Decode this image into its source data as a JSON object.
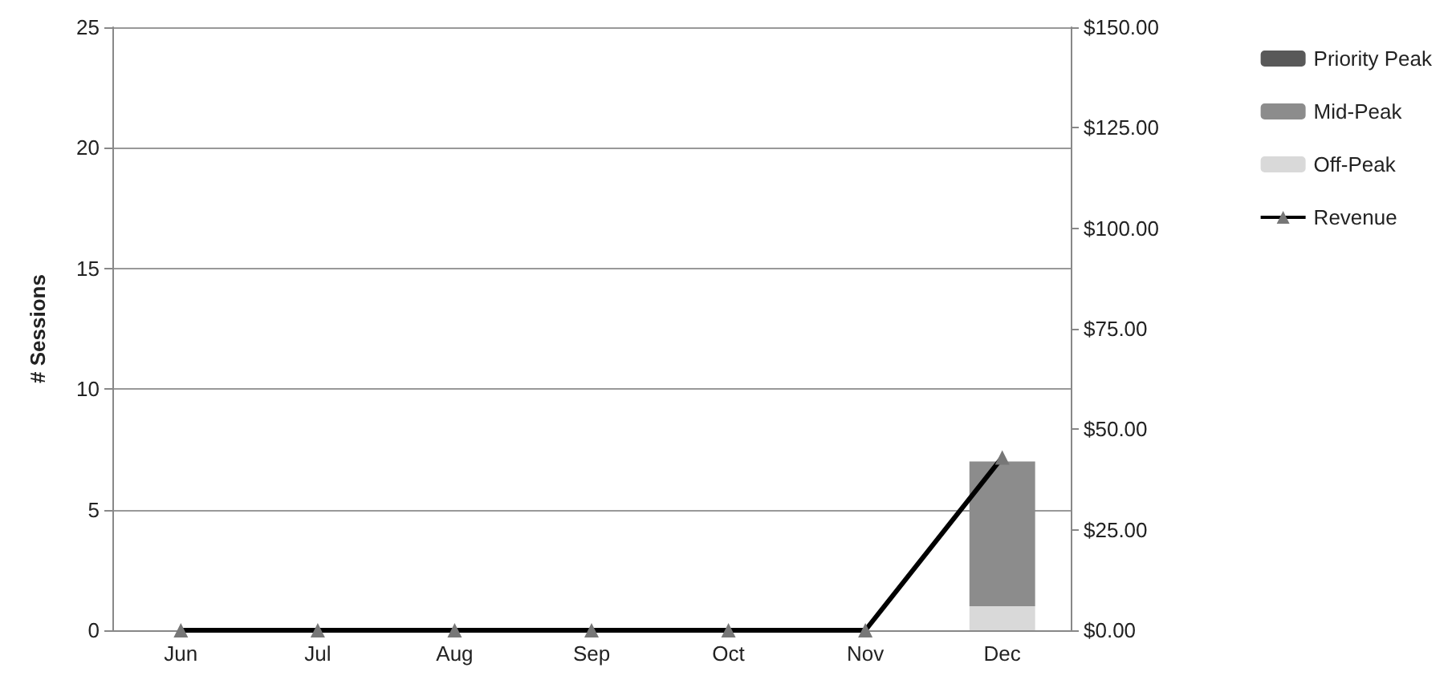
{
  "chart_data": {
    "type": "bar",
    "stacked": true,
    "ylabel": "# Sessions",
    "categories": [
      "Jun",
      "Jul",
      "Aug",
      "Sep",
      "Oct",
      "Nov",
      "Dec"
    ],
    "series": [
      {
        "name": "Off-Peak",
        "color": "#d9d9d9",
        "values": [
          0,
          0,
          0,
          0,
          0,
          0,
          1
        ]
      },
      {
        "name": "Mid-Peak",
        "color": "#8c8c8c",
        "values": [
          0,
          0,
          0,
          0,
          0,
          0,
          6
        ]
      },
      {
        "name": "Priority Peak",
        "color": "#595959",
        "values": [
          0,
          0,
          0,
          0,
          0,
          0,
          0
        ]
      },
      {
        "name": "Revenue",
        "type": "line",
        "axis": "y2",
        "color": "#000000",
        "marker": "triangle",
        "line_style": "solid",
        "values": [
          0,
          0,
          0,
          0,
          0,
          0,
          43
        ]
      }
    ],
    "ylim": [
      0,
      25
    ],
    "yticks": [
      0,
      5,
      10,
      15,
      20,
      25
    ],
    "y2lim": [
      0,
      150
    ],
    "y2ticks": [
      {
        "value": 0,
        "label": "$0.00"
      },
      {
        "value": 25,
        "label": "$25.00"
      },
      {
        "value": 50,
        "label": "$50.00"
      },
      {
        "value": 75,
        "label": "$75.00"
      },
      {
        "value": 100,
        "label": "$100.00"
      },
      {
        "value": 125,
        "label": "$125.00"
      },
      {
        "value": 150,
        "label": "$150.00"
      }
    ],
    "grid": "y",
    "legend": "right"
  }
}
